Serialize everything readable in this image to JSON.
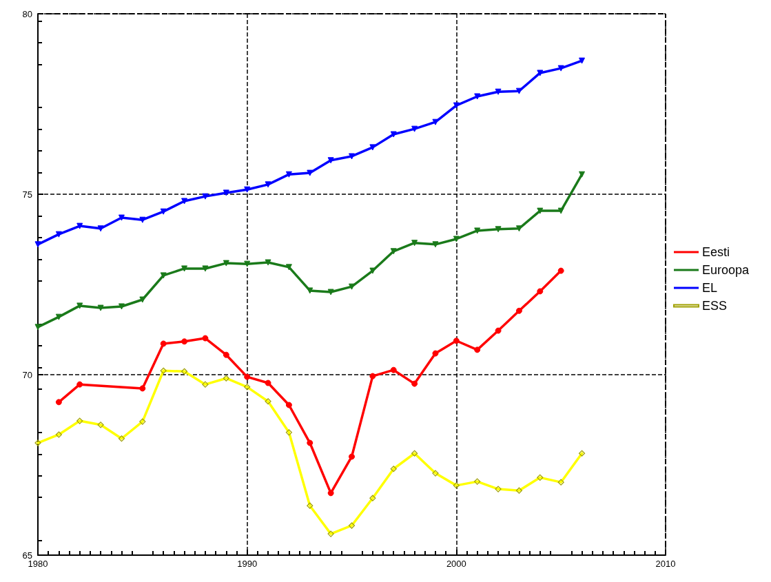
{
  "chart_data": {
    "type": "line",
    "x": [
      1980,
      1981,
      1982,
      1983,
      1984,
      1985,
      1986,
      1987,
      1988,
      1989,
      1990,
      1991,
      1992,
      1993,
      1994,
      1995,
      1996,
      1997,
      1998,
      1999,
      2000,
      2001,
      2002,
      2003,
      2004,
      2005,
      2006
    ],
    "series": [
      {
        "name": "Eesti",
        "color": "#ff0000",
        "marker": "circle",
        "x": [
          1981,
          1982,
          1985,
          1986,
          1987,
          1988,
          1989,
          1990,
          1991,
          1992,
          1993,
          1994,
          1995,
          1996,
          1997,
          1998,
          1999,
          2000,
          2001,
          2002,
          2003,
          2004,
          2005
        ],
        "values": [
          69.24,
          69.73,
          69.62,
          70.86,
          70.92,
          71.01,
          70.55,
          69.94,
          69.77,
          69.16,
          68.11,
          66.72,
          67.73,
          69.96,
          70.13,
          69.75,
          70.59,
          70.94,
          70.69,
          71.22,
          71.77,
          72.31,
          72.88
        ]
      },
      {
        "name": "Euroopa",
        "color": "#1a7a1a",
        "marker": "triangle",
        "values": [
          71.32,
          71.6,
          71.91,
          71.85,
          71.89,
          72.08,
          72.75,
          72.94,
          72.94,
          73.09,
          73.07,
          73.11,
          72.98,
          72.33,
          72.29,
          72.44,
          72.88,
          73.42,
          73.65,
          73.61,
          73.76,
          73.99,
          74.03,
          74.05,
          74.54,
          74.54,
          75.55
        ]
      },
      {
        "name": "EL",
        "color": "#0000ff",
        "marker": "triangle",
        "values": [
          73.61,
          73.89,
          74.12,
          74.05,
          74.35,
          74.29,
          74.52,
          74.81,
          74.94,
          75.04,
          75.13,
          75.27,
          75.55,
          75.59,
          75.94,
          76.05,
          76.3,
          76.66,
          76.81,
          77.0,
          77.46,
          77.71,
          77.84,
          77.86,
          78.36,
          78.49,
          78.7
        ]
      },
      {
        "name": "ESS",
        "color": "#ffff00",
        "marker": "diamond",
        "values": [
          68.11,
          68.34,
          68.72,
          68.61,
          68.23,
          68.7,
          70.11,
          70.09,
          69.73,
          69.9,
          69.66,
          69.26,
          68.4,
          66.37,
          65.59,
          65.82,
          66.58,
          67.39,
          67.82,
          67.27,
          66.93,
          67.04,
          66.83,
          66.79,
          67.15,
          67.02,
          67.82
        ]
      }
    ],
    "xlim": [
      1980,
      2010
    ],
    "xticks": [
      1980,
      1990,
      2000,
      2010
    ],
    "ylim": [
      65,
      80
    ],
    "yticks": [
      65,
      70,
      75,
      80
    ],
    "grid": true,
    "legend": "right",
    "line_style": "solid"
  }
}
